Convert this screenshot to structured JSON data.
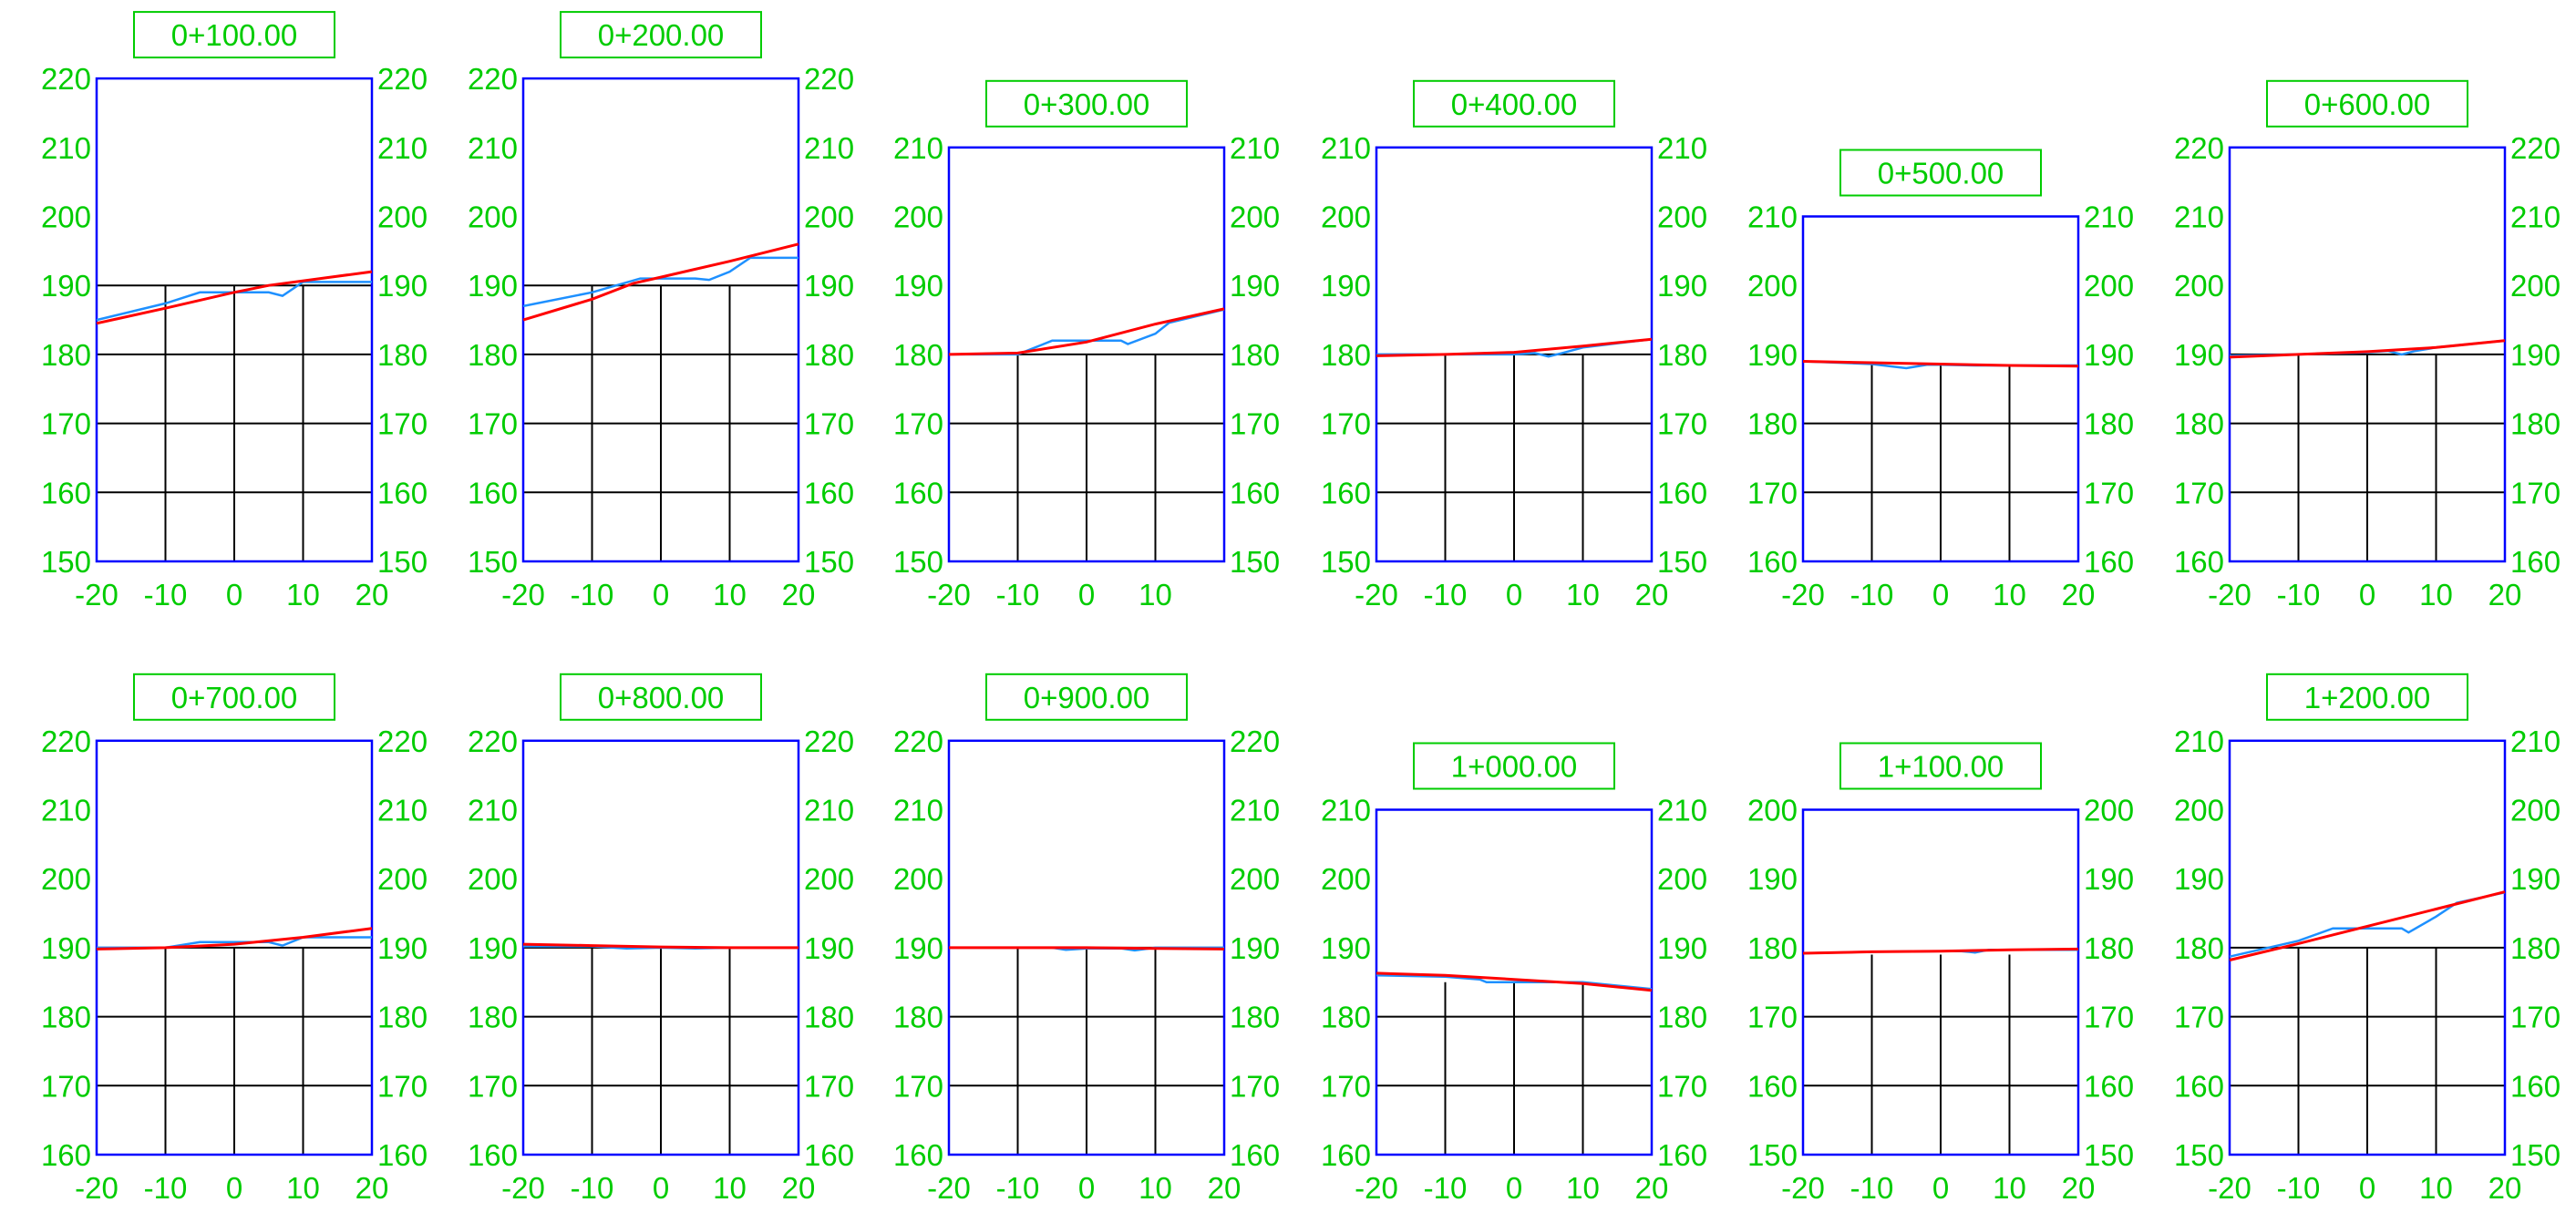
{
  "colors": {
    "frame": "#0000ff",
    "label": "#00cc00",
    "grid": "#000000",
    "ground": "#1e90ff",
    "design": "#ff0000",
    "background": "#ffffff"
  },
  "chart_data": [
    {
      "type": "line",
      "title": "0+100.00",
      "ylim": [
        150,
        220
      ],
      "xlim": [
        -20,
        20
      ],
      "x_ticks": [
        "-20",
        "-10",
        "0",
        "10",
        "20"
      ],
      "y_ticks": [
        "150",
        "160",
        "170",
        "180",
        "190",
        "200",
        "210",
        "220"
      ],
      "grid_top": 190,
      "series": [
        {
          "x": [
            -20,
            -10,
            -5,
            0,
            5,
            7,
            10,
            12,
            20
          ],
          "y": [
            185,
            187.4,
            189,
            189,
            189,
            188.5,
            190.5,
            190.5,
            190.5
          ]
        },
        {
          "x": [
            -20,
            -10,
            0,
            5,
            20
          ],
          "y": [
            184.5,
            186.7,
            189,
            190,
            192
          ]
        }
      ]
    },
    {
      "type": "line",
      "title": "0+200.00",
      "ylim": [
        150,
        220
      ],
      "xlim": [
        -20,
        20
      ],
      "x_ticks": [
        "-20",
        "-10",
        "0",
        "10",
        "20"
      ],
      "y_ticks": [
        "150",
        "160",
        "170",
        "180",
        "190",
        "200",
        "210",
        "220"
      ],
      "grid_top": 190,
      "series": [
        {
          "x": [
            -20,
            -10,
            -3,
            0,
            5,
            7,
            10,
            13,
            20
          ],
          "y": [
            187,
            189,
            191,
            191,
            191,
            190.8,
            192,
            194,
            194
          ]
        },
        {
          "x": [
            -20,
            -10,
            -4,
            0,
            10,
            20
          ],
          "y": [
            185,
            188,
            190.3,
            191.2,
            193.5,
            196
          ]
        }
      ]
    },
    {
      "type": "line",
      "title": "0+300.00",
      "ylim": [
        150,
        210
      ],
      "xlim": [
        -20,
        20
      ],
      "x_ticks": [
        "-20",
        "-10",
        "0",
        "10"
      ],
      "y_ticks": [
        "150",
        "160",
        "170",
        "180",
        "190",
        "200",
        "210"
      ],
      "grid_top": 180,
      "series": [
        {
          "x": [
            -20,
            -10,
            -5,
            0,
            5,
            6,
            10,
            12,
            20
          ],
          "y": [
            180,
            180,
            182,
            182,
            182,
            181.5,
            183,
            184.6,
            186.5
          ]
        },
        {
          "x": [
            -20,
            -10,
            0,
            10,
            20
          ],
          "y": [
            180,
            180.2,
            181.8,
            184.4,
            186.6
          ]
        }
      ]
    },
    {
      "type": "line",
      "title": "0+400.00",
      "ylim": [
        150,
        210
      ],
      "xlim": [
        -20,
        20
      ],
      "x_ticks": [
        "-20",
        "-10",
        "0",
        "10",
        "20"
      ],
      "y_ticks": [
        "150",
        "160",
        "170",
        "180",
        "190",
        "200",
        "210"
      ],
      "grid_top": 180,
      "series": [
        {
          "x": [
            -20,
            -10,
            0,
            3,
            5,
            7,
            10,
            20
          ],
          "y": [
            180,
            180,
            180,
            180.2,
            179.7,
            180.2,
            181,
            182.2
          ]
        },
        {
          "x": [
            -20,
            -10,
            0,
            10,
            20
          ],
          "y": [
            179.8,
            180,
            180.3,
            181.2,
            182.2
          ]
        }
      ]
    },
    {
      "type": "line",
      "title": "0+500.00",
      "ylim": [
        160,
        210
      ],
      "xlim": [
        -20,
        20
      ],
      "x_ticks": [
        "-20",
        "-10",
        "0",
        "10",
        "20"
      ],
      "y_ticks": [
        "160",
        "170",
        "180",
        "190",
        "200",
        "210"
      ],
      "grid_top": 188.5,
      "series": [
        {
          "x": [
            -20,
            -10,
            -5,
            -2,
            0,
            5,
            10,
            20
          ],
          "y": [
            189,
            188.6,
            188,
            188.5,
            188.5,
            188.4,
            188.4,
            188.4
          ]
        },
        {
          "x": [
            -20,
            -10,
            0,
            10,
            20
          ],
          "y": [
            189,
            188.8,
            188.6,
            188.4,
            188.3
          ]
        }
      ]
    },
    {
      "type": "line",
      "title": "0+600.00",
      "ylim": [
        160,
        220
      ],
      "xlim": [
        -20,
        20
      ],
      "x_ticks": [
        "-20",
        "-10",
        "0",
        "10",
        "20"
      ],
      "y_ticks": [
        "160",
        "170",
        "180",
        "190",
        "200",
        "210",
        "220"
      ],
      "grid_top": 190,
      "series": [
        {
          "x": [
            -20,
            -10,
            0,
            3,
            5,
            7,
            10,
            20
          ],
          "y": [
            189.8,
            190,
            190.3,
            190.5,
            190,
            190.5,
            191,
            192
          ]
        },
        {
          "x": [
            -20,
            -10,
            0,
            10,
            20
          ],
          "y": [
            189.6,
            190,
            190.4,
            191,
            192
          ]
        }
      ]
    },
    {
      "type": "line",
      "title": "0+700.00",
      "ylim": [
        160,
        220
      ],
      "xlim": [
        -20,
        20
      ],
      "x_ticks": [
        "-20",
        "-10",
        "0",
        "10",
        "20"
      ],
      "y_ticks": [
        "160",
        "170",
        "180",
        "190",
        "200",
        "210",
        "220"
      ],
      "grid_top": 190,
      "series": [
        {
          "x": [
            -20,
            -10,
            -5,
            0,
            5,
            7,
            10,
            20
          ],
          "y": [
            190,
            190,
            190.8,
            190.8,
            190.8,
            190.3,
            191.5,
            191.5
          ]
        },
        {
          "x": [
            -20,
            -10,
            0,
            10,
            20
          ],
          "y": [
            189.8,
            190,
            190.5,
            191.5,
            192.8
          ]
        }
      ]
    },
    {
      "type": "line",
      "title": "0+800.00",
      "ylim": [
        160,
        220
      ],
      "xlim": [
        -20,
        20
      ],
      "x_ticks": [
        "-20",
        "-10",
        "0",
        "10",
        "20"
      ],
      "y_ticks": [
        "160",
        "170",
        "180",
        "190",
        "200",
        "210",
        "220"
      ],
      "grid_top": 190,
      "series": [
        {
          "x": [
            -20,
            -10,
            -5,
            0,
            5,
            10,
            20
          ],
          "y": [
            190.2,
            190.2,
            189.9,
            190,
            189.9,
            190,
            190
          ]
        },
        {
          "x": [
            -20,
            -10,
            0,
            10,
            20
          ],
          "y": [
            190.5,
            190.3,
            190.1,
            190,
            190
          ]
        }
      ]
    },
    {
      "type": "line",
      "title": "0+900.00",
      "ylim": [
        160,
        220
      ],
      "xlim": [
        -20,
        20
      ],
      "x_ticks": [
        "-20",
        "-10",
        "0",
        "10",
        "20"
      ],
      "y_ticks": [
        "160",
        "170",
        "180",
        "190",
        "200",
        "210",
        "220"
      ],
      "grid_top": 190,
      "series": [
        {
          "x": [
            -20,
            -10,
            -5,
            -3,
            0,
            5,
            7,
            10,
            20
          ],
          "y": [
            190,
            190,
            190,
            189.7,
            189.9,
            189.9,
            189.6,
            190,
            190
          ]
        },
        {
          "x": [
            -20,
            -10,
            0,
            10,
            20
          ],
          "y": [
            190,
            190,
            190,
            189.9,
            189.8
          ]
        }
      ]
    },
    {
      "type": "line",
      "title": "1+000.00",
      "ylim": [
        160,
        210
      ],
      "xlim": [
        -20,
        20
      ],
      "x_ticks": [
        "-20",
        "-10",
        "0",
        "10",
        "20"
      ],
      "y_ticks": [
        "160",
        "170",
        "180",
        "190",
        "200",
        "210"
      ],
      "grid_top": 185,
      "series": [
        {
          "x": [
            -20,
            -10,
            -5,
            -4,
            0,
            5,
            7,
            10,
            20
          ],
          "y": [
            186,
            185.8,
            185.4,
            185,
            185,
            185,
            185,
            185,
            184
          ]
        },
        {
          "x": [
            -20,
            -10,
            0,
            10,
            20
          ],
          "y": [
            186.3,
            186,
            185.4,
            184.8,
            183.8
          ]
        }
      ]
    },
    {
      "type": "line",
      "title": "1+100.00",
      "ylim": [
        150,
        200
      ],
      "xlim": [
        -20,
        20
      ],
      "x_ticks": [
        "-20",
        "-10",
        "0",
        "10",
        "20"
      ],
      "y_ticks": [
        "150",
        "160",
        "170",
        "180",
        "190",
        "200"
      ],
      "grid_top": 179,
      "series": [
        {
          "x": [
            -20,
            -10,
            0,
            3,
            5,
            7,
            10,
            20
          ],
          "y": [
            179.2,
            179.4,
            179.5,
            179.5,
            179.3,
            179.7,
            179.7,
            179.7
          ]
        },
        {
          "x": [
            -20,
            -10,
            0,
            10,
            20
          ],
          "y": [
            179.2,
            179.4,
            179.5,
            179.7,
            179.8
          ]
        }
      ]
    },
    {
      "type": "line",
      "title": "1+200.00",
      "ylim": [
        150,
        210
      ],
      "xlim": [
        -20,
        20
      ],
      "x_ticks": [
        "-20",
        "-10",
        "0",
        "10",
        "20"
      ],
      "y_ticks": [
        "150",
        "160",
        "170",
        "180",
        "190",
        "200",
        "210"
      ],
      "grid_top": 180,
      "series": [
        {
          "x": [
            -20,
            -10,
            -5,
            0,
            5,
            6,
            10,
            13,
            20
          ],
          "y": [
            178.7,
            181,
            182.8,
            182.8,
            182.8,
            182.2,
            184.5,
            186.5,
            188
          ]
        },
        {
          "x": [
            -20,
            -10,
            0,
            10,
            20
          ],
          "y": [
            178.2,
            180.6,
            183.1,
            185.6,
            188.1
          ]
        }
      ]
    }
  ]
}
